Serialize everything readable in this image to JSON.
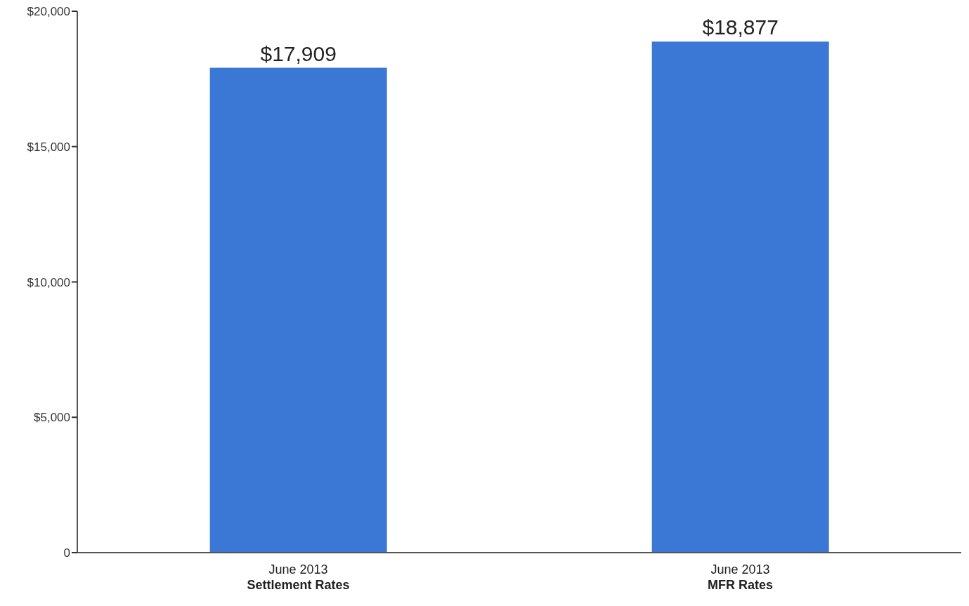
{
  "chart_data": {
    "type": "bar",
    "categories": [
      "June 2013\nSettlement Rates",
      "June 2013\nMFR Rates"
    ],
    "values": [
      17909,
      18877
    ],
    "color": "#3b78d5",
    "value_labels": [
      "$17,909",
      "$18,877"
    ],
    "ylim": [
      0,
      20000
    ],
    "yticks": [
      {
        "value": 0,
        "label": "0"
      },
      {
        "value": 5000,
        "label": "$5,000"
      },
      {
        "value": 10000,
        "label": "$10,000"
      },
      {
        "value": 15000,
        "label": "$15,000"
      },
      {
        "value": 20000,
        "label": "$20,000"
      }
    ],
    "grid": false,
    "legend": false
  }
}
